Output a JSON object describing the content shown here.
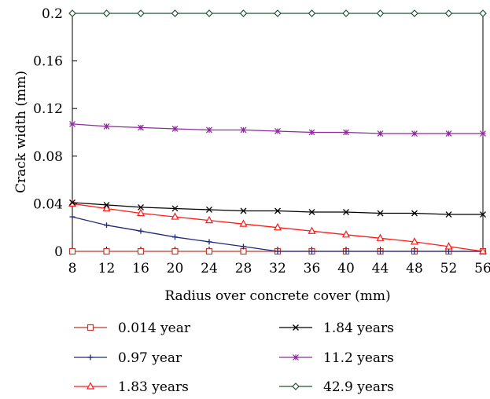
{
  "chart_data": {
    "type": "line",
    "title": "",
    "xlabel": "Radius over concrete cover (mm)",
    "ylabel": "Crack width (mm)",
    "xlim": [
      8,
      56
    ],
    "ylim": [
      0,
      0.2
    ],
    "x_ticks": [
      8,
      12,
      16,
      20,
      24,
      28,
      32,
      36,
      40,
      44,
      48,
      52,
      56
    ],
    "y_ticks": [
      0,
      0.04,
      0.08,
      0.12,
      0.16,
      0.2
    ],
    "x_tick_labels": [
      "8",
      "12",
      "16",
      "20",
      "24",
      "28",
      "32",
      "36",
      "40",
      "44",
      "48",
      "52",
      "56"
    ],
    "y_tick_labels": [
      "0",
      "0.04",
      "0.08",
      "0.12",
      "0.16",
      "0.2"
    ],
    "grid": false,
    "legend_position": "bottom",
    "x": [
      8,
      12,
      16,
      20,
      24,
      28,
      32,
      36,
      40,
      44,
      48,
      52,
      56
    ],
    "series": [
      {
        "name": "0.014 year",
        "color": "#c0392b",
        "marker": "square-open",
        "values": [
          0.0,
          0.0,
          0.0,
          0.0,
          0.0,
          0.0,
          0.0,
          0.0,
          0.0,
          0.0,
          0.0,
          0.0,
          0.0
        ]
      },
      {
        "name": "0.97 year",
        "color": "#1f2a7a",
        "marker": "plus",
        "values": [
          0.029,
          0.022,
          0.017,
          0.012,
          0.008,
          0.004,
          0.0,
          0.0,
          0.0,
          0.0,
          0.0,
          0.0,
          0.0
        ]
      },
      {
        "name": "1.83 years",
        "color": "#ff1a1a",
        "marker": "triangle-open",
        "values": [
          0.04,
          0.036,
          0.032,
          0.029,
          0.026,
          0.023,
          0.02,
          0.017,
          0.014,
          0.011,
          0.008,
          0.004,
          0.0
        ]
      },
      {
        "name": "1.84 years",
        "color": "#000000",
        "marker": "x",
        "values": [
          0.041,
          0.039,
          0.037,
          0.036,
          0.035,
          0.034,
          0.034,
          0.033,
          0.033,
          0.032,
          0.032,
          0.031,
          0.031
        ]
      },
      {
        "name": "11.2 years",
        "color": "#8e2a9e",
        "marker": "star",
        "values": [
          0.107,
          0.105,
          0.104,
          0.103,
          0.102,
          0.102,
          0.101,
          0.1,
          0.1,
          0.099,
          0.099,
          0.099,
          0.099
        ]
      },
      {
        "name": "42.9 years",
        "color": "#1e5631",
        "marker": "diamond-open",
        "values": [
          0.2,
          0.2,
          0.2,
          0.2,
          0.2,
          0.2,
          0.2,
          0.2,
          0.2,
          0.2,
          0.2,
          0.2,
          0.2
        ]
      }
    ]
  }
}
